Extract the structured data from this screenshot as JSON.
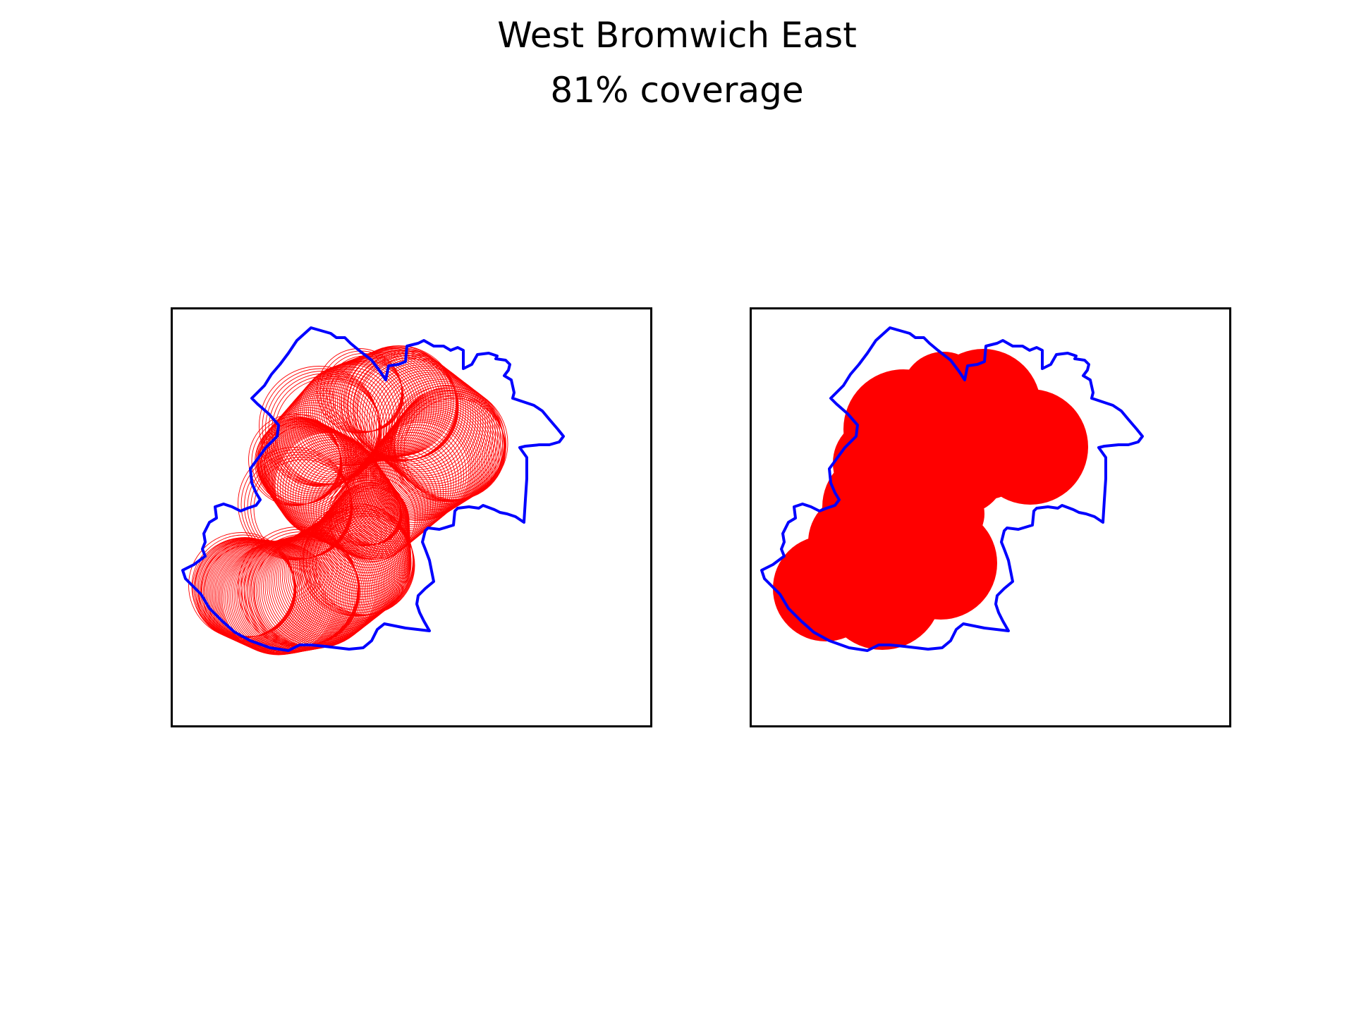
{
  "figure": {
    "title": "West Bromwich East",
    "subtitle": "81% coverage"
  },
  "colors": {
    "boundary": "#0000ff",
    "coverage": "#ff0000",
    "frame": "#000000",
    "background": "#ffffff"
  },
  "panels": [
    {
      "id": "left",
      "style": "circle-outlines"
    },
    {
      "id": "right",
      "style": "filled-union"
    }
  ]
}
